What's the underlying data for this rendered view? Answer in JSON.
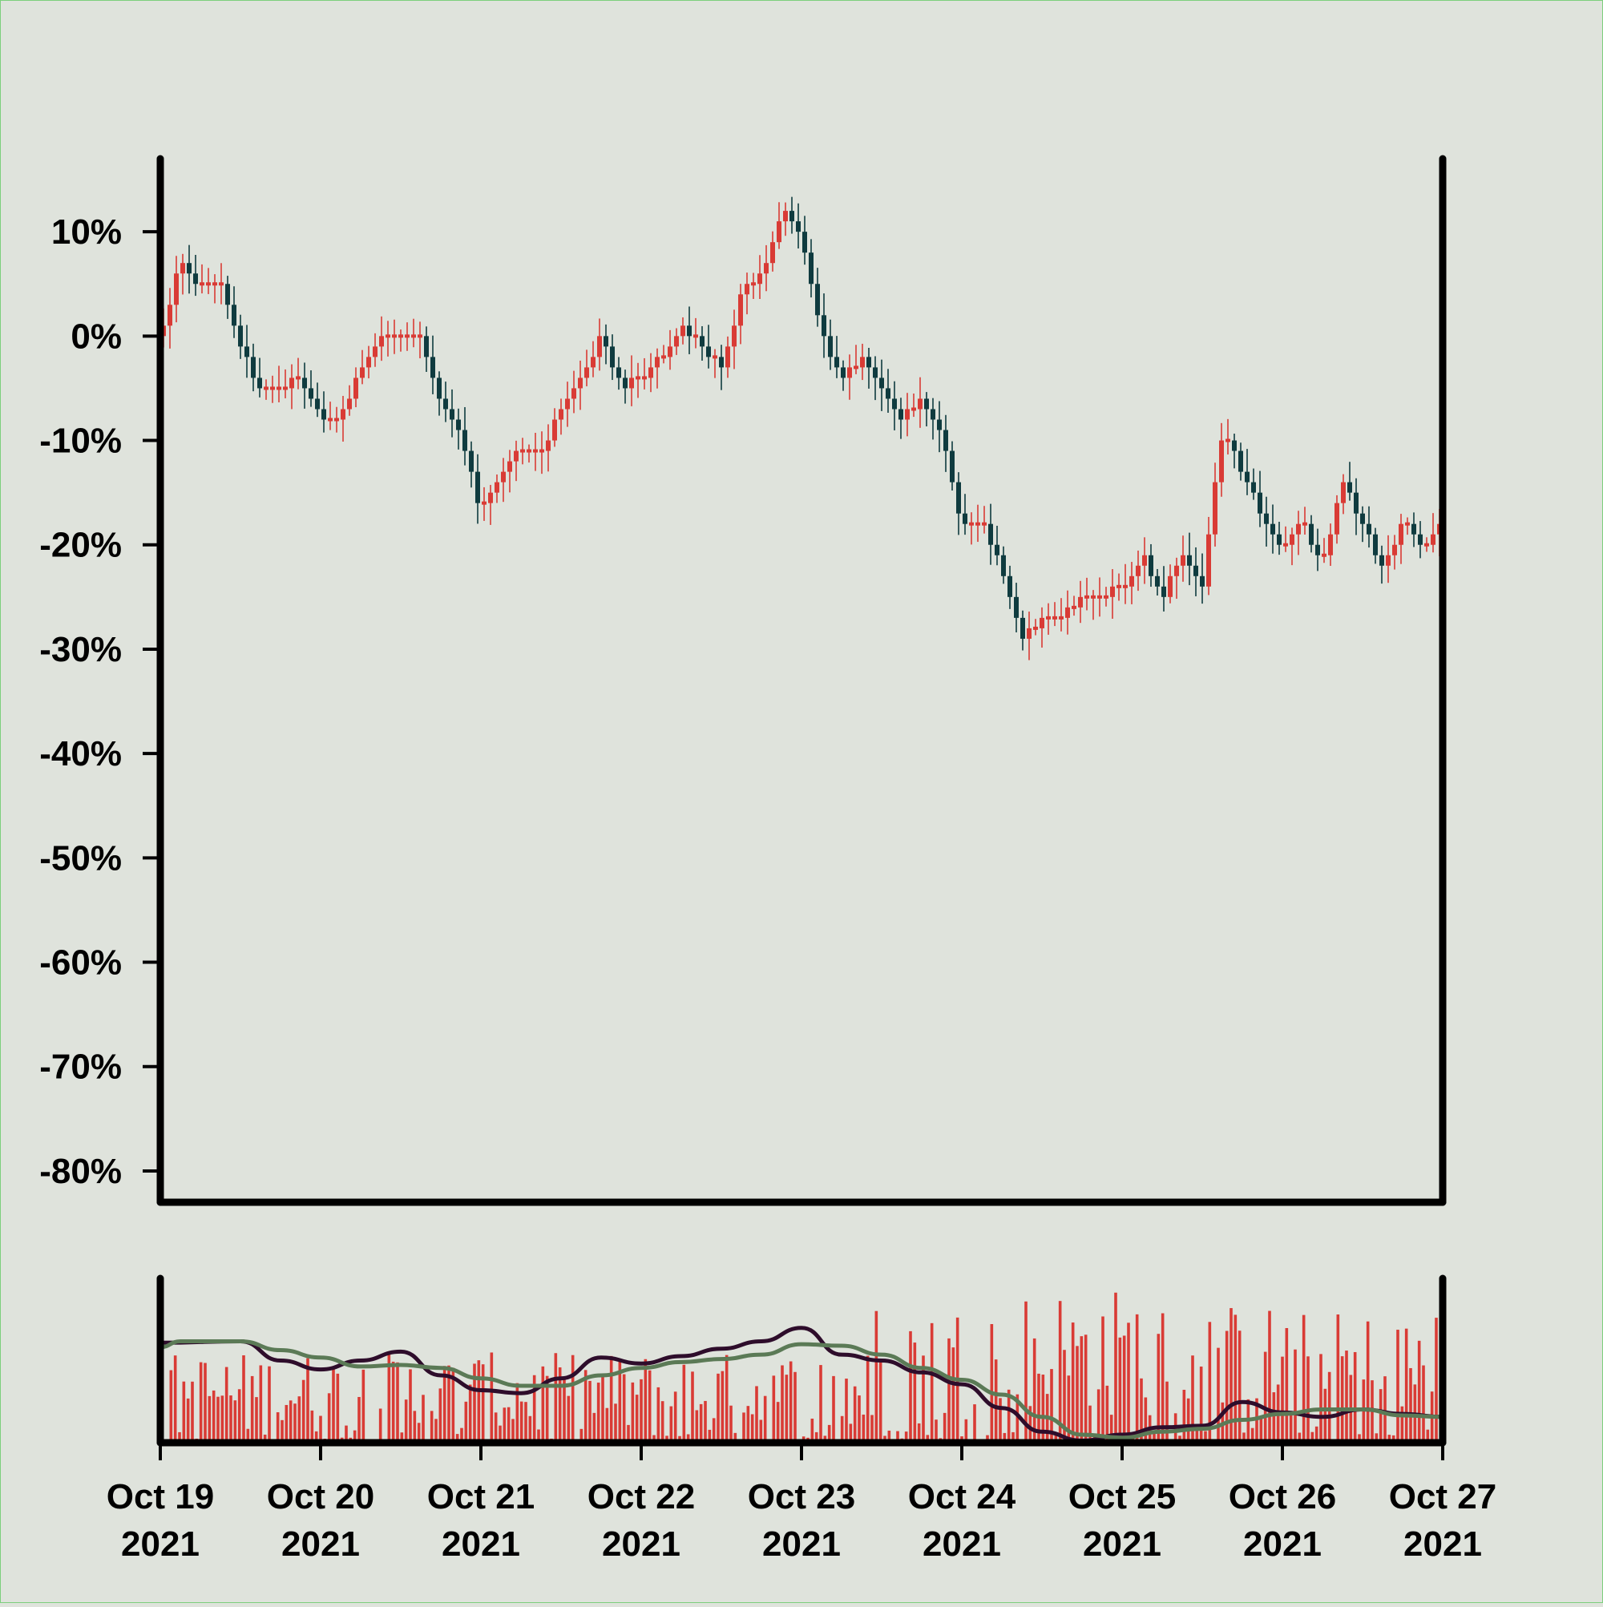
{
  "chart_data": [
    {
      "type": "candlestick",
      "y_unit": "%",
      "y_tick_labels": [
        "10%",
        "0%",
        "-10%",
        "-20%",
        "-30%",
        "-40%",
        "-50%",
        "-60%",
        "-70%",
        "-80%"
      ],
      "y_ticks": [
        10,
        0,
        -10,
        -20,
        -30,
        -40,
        -50,
        -60,
        -70,
        -80
      ],
      "ylim": [
        -83,
        17
      ],
      "x_tick_labels": [
        {
          "month_day": "Oct 19",
          "year": "2021"
        },
        {
          "month_day": "Oct 20",
          "year": "2021"
        },
        {
          "month_day": "Oct 21",
          "year": "2021"
        },
        {
          "month_day": "Oct 22",
          "year": "2021"
        },
        {
          "month_day": "Oct 23",
          "year": "2021"
        },
        {
          "month_day": "Oct 24",
          "year": "2021"
        },
        {
          "month_day": "Oct 25",
          "year": "2021"
        },
        {
          "month_day": "Oct 26",
          "year": "2021"
        },
        {
          "month_day": "Oct 27",
          "year": "2021"
        }
      ],
      "xlim": [
        "2021-10-19",
        "2021-10-27"
      ],
      "close_path": [
        [
          "2021-10-19T00:00",
          0
        ],
        [
          "2021-10-19T03:00",
          7
        ],
        [
          "2021-10-19T06:00",
          5
        ],
        [
          "2021-10-19T09:00",
          5
        ],
        [
          "2021-10-19T12:00",
          -1
        ],
        [
          "2021-10-19T15:00",
          -5
        ],
        [
          "2021-10-19T18:00",
          -5
        ],
        [
          "2021-10-19T21:00",
          -4
        ],
        [
          "2021-10-20T00:00",
          -8
        ],
        [
          "2021-10-20T03:00",
          -8
        ],
        [
          "2021-10-20T06:00",
          -3
        ],
        [
          "2021-10-20T09:00",
          0
        ],
        [
          "2021-10-20T12:00",
          0
        ],
        [
          "2021-10-20T15:00",
          0
        ],
        [
          "2021-10-20T18:00",
          -7
        ],
        [
          "2021-10-20T21:00",
          -9
        ],
        [
          "2021-10-21T00:00",
          -17
        ],
        [
          "2021-10-21T03:00",
          -13
        ],
        [
          "2021-10-21T06:00",
          -11
        ],
        [
          "2021-10-21T09:00",
          -11
        ],
        [
          "2021-10-21T12:00",
          -7
        ],
        [
          "2021-10-21T15:00",
          -4
        ],
        [
          "2021-10-21T18:00",
          0
        ],
        [
          "2021-10-21T21:00",
          -5
        ],
        [
          "2021-10-22T00:00",
          -4
        ],
        [
          "2021-10-22T03:00",
          -2
        ],
        [
          "2021-10-22T06:00",
          1
        ],
        [
          "2021-10-22T09:00",
          -1
        ],
        [
          "2021-10-22T12:00",
          -3
        ],
        [
          "2021-10-22T15:00",
          4
        ],
        [
          "2021-10-22T18:00",
          6
        ],
        [
          "2021-10-22T21:00",
          12
        ],
        [
          "2021-10-23T00:00",
          10
        ],
        [
          "2021-10-23T03:00",
          0
        ],
        [
          "2021-10-23T06:00",
          -4
        ],
        [
          "2021-10-23T09:00",
          -2
        ],
        [
          "2021-10-23T12:00",
          -5
        ],
        [
          "2021-10-23T15:00",
          -8
        ],
        [
          "2021-10-23T18:00",
          -6
        ],
        [
          "2021-10-23T21:00",
          -9
        ],
        [
          "2021-10-24T00:00",
          -18
        ],
        [
          "2021-10-24T03:00",
          -18
        ],
        [
          "2021-10-24T06:00",
          -22
        ],
        [
          "2021-10-24T09:00",
          -29
        ],
        [
          "2021-10-24T12:00",
          -27
        ],
        [
          "2021-10-24T15:00",
          -27
        ],
        [
          "2021-10-24T18:00",
          -25
        ],
        [
          "2021-10-24T21:00",
          -25
        ],
        [
          "2021-10-25T00:00",
          -24
        ],
        [
          "2021-10-25T03:00",
          -21
        ],
        [
          "2021-10-25T06:00",
          -25
        ],
        [
          "2021-10-25T09:00",
          -21
        ],
        [
          "2021-10-25T12:00",
          -24
        ],
        [
          "2021-10-25T15:00",
          -9
        ],
        [
          "2021-10-25T18:00",
          -13
        ],
        [
          "2021-10-25T21:00",
          -17
        ],
        [
          "2021-10-26T00:00",
          -20
        ],
        [
          "2021-10-26T03:00",
          -18
        ],
        [
          "2021-10-26T06:00",
          -22
        ],
        [
          "2021-10-26T09:00",
          -14
        ],
        [
          "2021-10-26T12:00",
          -18
        ],
        [
          "2021-10-26T15:00",
          -22
        ],
        [
          "2021-10-26T18:00",
          -18
        ],
        [
          "2021-10-26T21:00",
          -20
        ],
        [
          "2021-10-27T00:00",
          -18
        ]
      ],
      "up_color": "#d93b35",
      "down_color": "#0f3b3f"
    },
    {
      "type": "bar",
      "role": "volume",
      "bar_color": "#d93b35",
      "moving_averages": [
        {
          "color": "#2e0d2b",
          "points": [
            [
              "2021-10-19T00:00",
              0.62
            ],
            [
              "2021-10-19T12:00",
              0.63
            ],
            [
              "2021-10-19T18:00",
              0.5
            ],
            [
              "2021-10-20T00:00",
              0.44
            ],
            [
              "2021-10-20T06:00",
              0.5
            ],
            [
              "2021-10-20T12:00",
              0.56
            ],
            [
              "2021-10-20T18:00",
              0.4
            ],
            [
              "2021-10-21T00:00",
              0.3
            ],
            [
              "2021-10-21T06:00",
              0.28
            ],
            [
              "2021-10-21T12:00",
              0.38
            ],
            [
              "2021-10-21T18:00",
              0.52
            ],
            [
              "2021-10-22T00:00",
              0.48
            ],
            [
              "2021-10-22T06:00",
              0.53
            ],
            [
              "2021-10-22T12:00",
              0.58
            ],
            [
              "2021-10-22T18:00",
              0.63
            ],
            [
              "2021-10-23T00:00",
              0.72
            ],
            [
              "2021-10-23T06:00",
              0.54
            ],
            [
              "2021-10-23T12:00",
              0.5
            ],
            [
              "2021-10-23T18:00",
              0.42
            ],
            [
              "2021-10-24T00:00",
              0.34
            ],
            [
              "2021-10-24T06:00",
              0.18
            ],
            [
              "2021-10-24T12:00",
              0.02
            ],
            [
              "2021-10-24T18:00",
              -0.04
            ],
            [
              "2021-10-25T00:00",
              0.0
            ],
            [
              "2021-10-25T06:00",
              0.05
            ],
            [
              "2021-10-25T12:00",
              0.06
            ],
            [
              "2021-10-25T18:00",
              0.22
            ],
            [
              "2021-10-26T00:00",
              0.15
            ],
            [
              "2021-10-26T06:00",
              0.12
            ],
            [
              "2021-10-26T12:00",
              0.17
            ],
            [
              "2021-10-26T18:00",
              0.14
            ],
            [
              "2021-10-27T00:00",
              0.12
            ]
          ]
        },
        {
          "color": "#5b7a56",
          "points": [
            [
              "2021-10-19T00:00",
              0.59
            ],
            [
              "2021-10-19T03:00",
              0.63
            ],
            [
              "2021-10-19T12:00",
              0.63
            ],
            [
              "2021-10-19T18:00",
              0.57
            ],
            [
              "2021-10-20T00:00",
              0.52
            ],
            [
              "2021-10-20T06:00",
              0.46
            ],
            [
              "2021-10-20T12:00",
              0.47
            ],
            [
              "2021-10-20T18:00",
              0.45
            ],
            [
              "2021-10-21T00:00",
              0.38
            ],
            [
              "2021-10-21T06:00",
              0.33
            ],
            [
              "2021-10-21T12:00",
              0.33
            ],
            [
              "2021-10-21T18:00",
              0.4
            ],
            [
              "2021-10-22T00:00",
              0.45
            ],
            [
              "2021-10-22T06:00",
              0.49
            ],
            [
              "2021-10-22T12:00",
              0.51
            ],
            [
              "2021-10-22T18:00",
              0.54
            ],
            [
              "2021-10-23T00:00",
              0.61
            ],
            [
              "2021-10-23T06:00",
              0.6
            ],
            [
              "2021-10-23T12:00",
              0.54
            ],
            [
              "2021-10-23T18:00",
              0.45
            ],
            [
              "2021-10-24T00:00",
              0.37
            ],
            [
              "2021-10-24T06:00",
              0.27
            ],
            [
              "2021-10-24T12:00",
              0.12
            ],
            [
              "2021-10-24T18:00",
              0.0
            ],
            [
              "2021-10-25T00:00",
              -0.02
            ],
            [
              "2021-10-25T06:00",
              0.02
            ],
            [
              "2021-10-25T12:00",
              0.04
            ],
            [
              "2021-10-25T18:00",
              0.1
            ],
            [
              "2021-10-26T00:00",
              0.14
            ],
            [
              "2021-10-26T06:00",
              0.17
            ],
            [
              "2021-10-26T12:00",
              0.17
            ],
            [
              "2021-10-26T18:00",
              0.13
            ],
            [
              "2021-10-27T00:00",
              0.12
            ]
          ]
        }
      ]
    }
  ]
}
